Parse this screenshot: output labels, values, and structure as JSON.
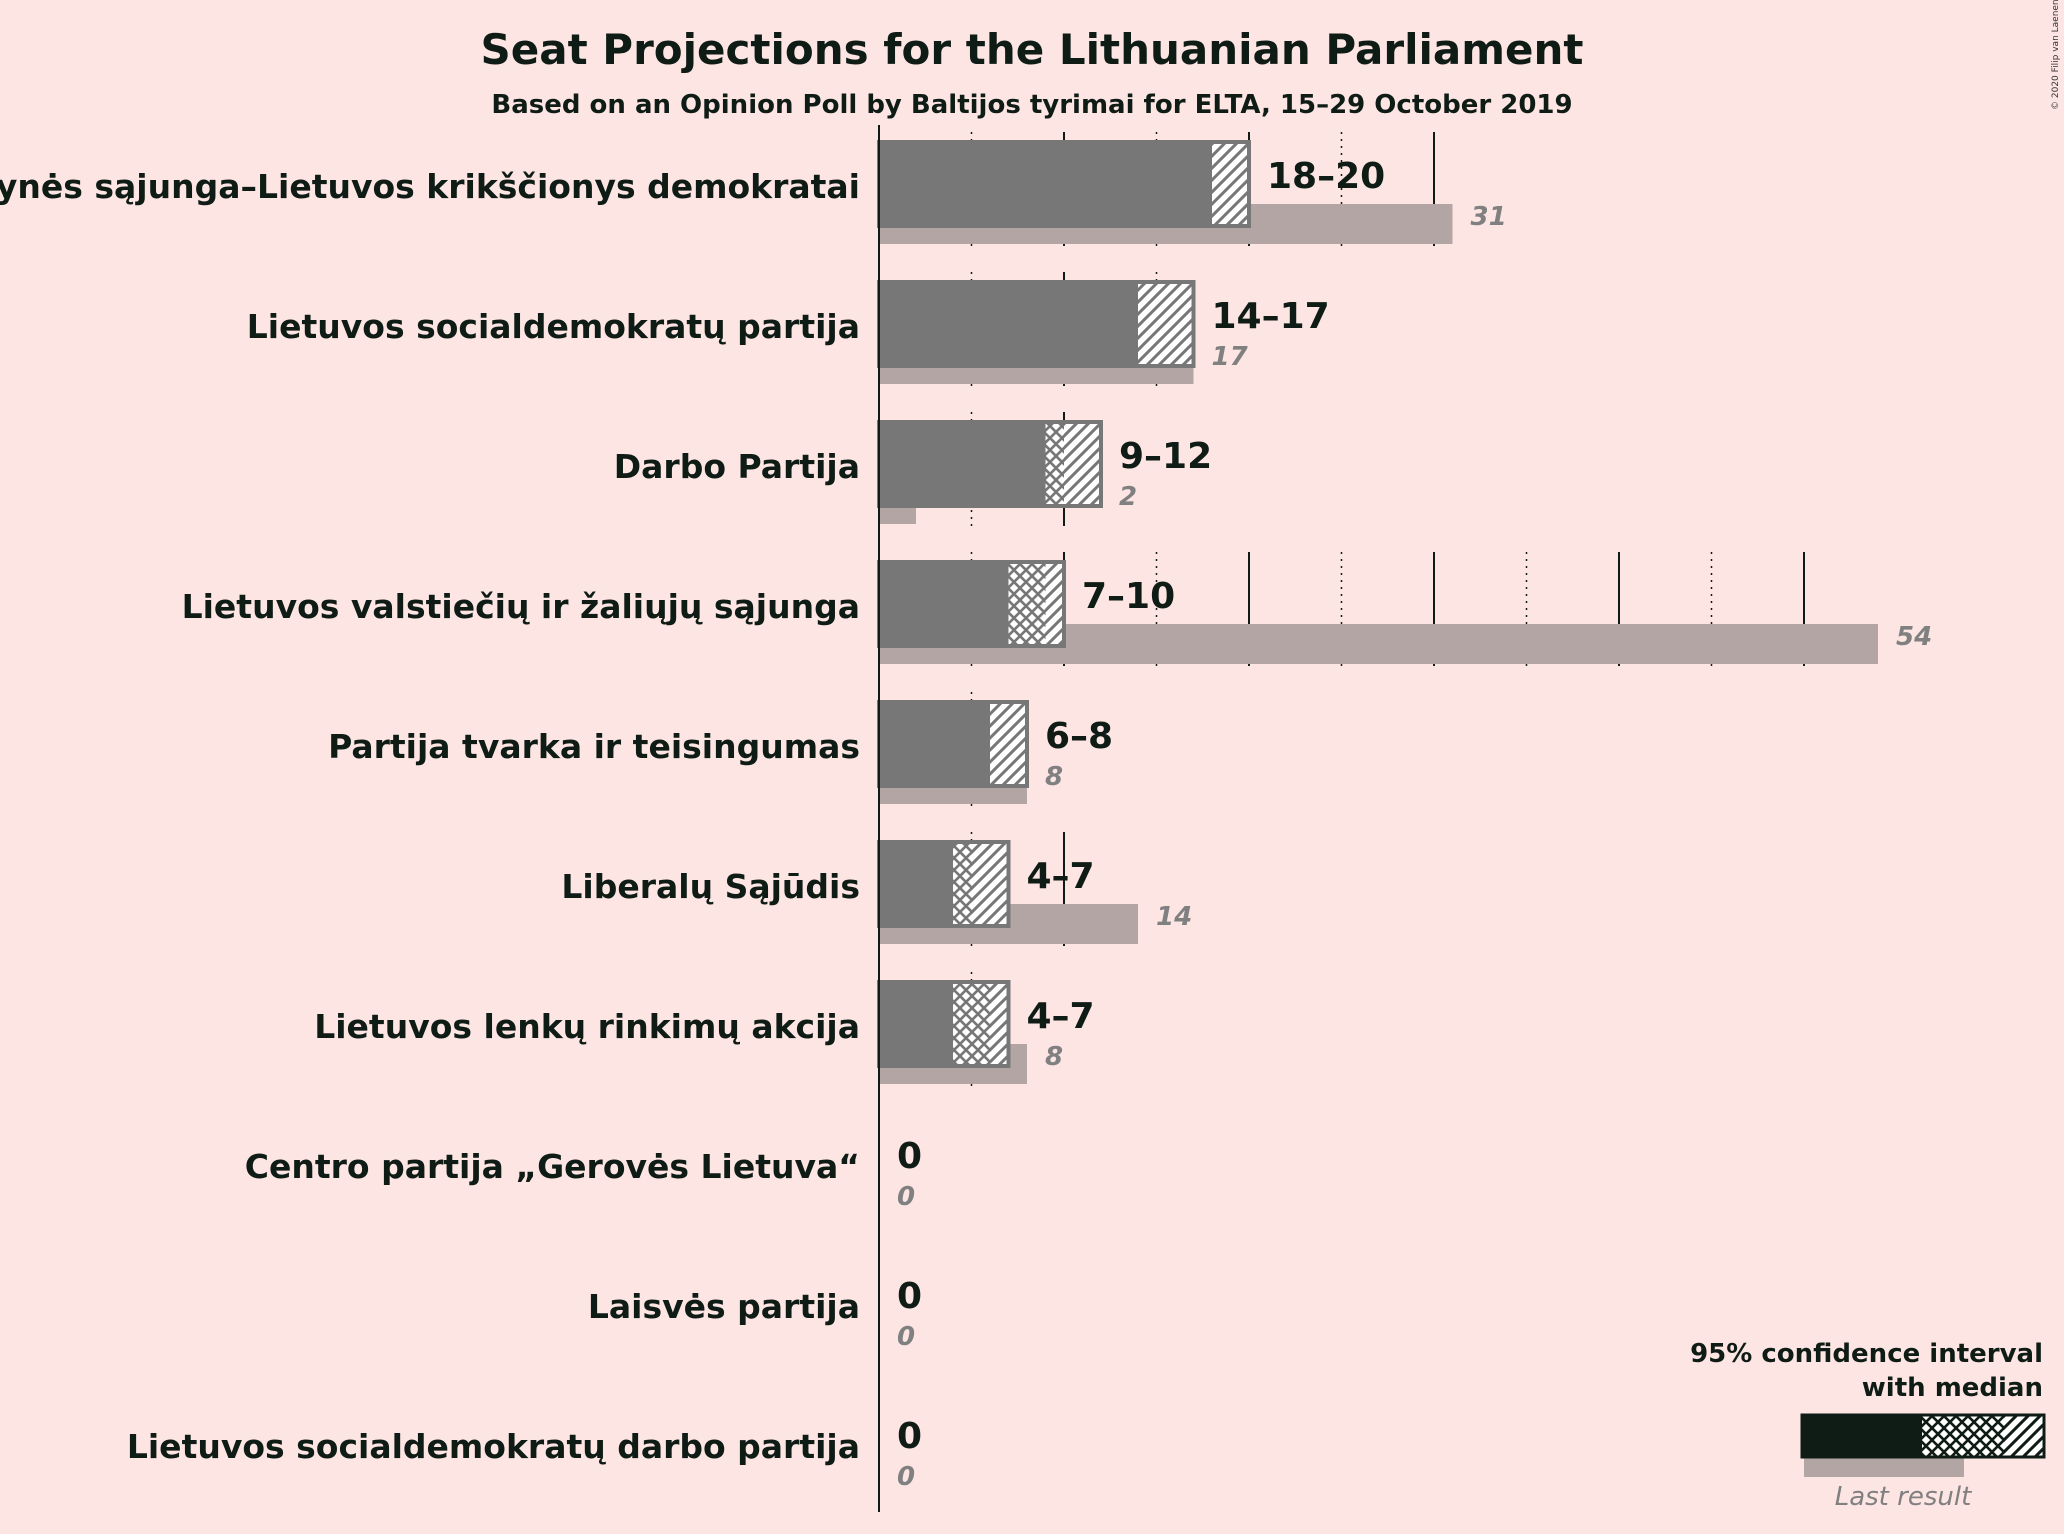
{
  "copyright": "© 2020 Filip van Laenen",
  "legend": {
    "ci_line1": "95% confidence interval",
    "ci_line2": "with median",
    "last_result": "Last result"
  },
  "colors": {
    "bar": "#777777",
    "last_result": "#b3a5a4",
    "background": "#fde5e4",
    "text": "#0f1c16",
    "legend_bar": "#0f1c16"
  },
  "chart_data": {
    "type": "bar",
    "orientation": "horizontal",
    "title": "Seat Projections for the Lithuanian Parliament",
    "subtitle": "Based on an Opinion Poll by Baltijos tyrimai for ELTA, 15–29 October 2019",
    "xlim": [
      0,
      56
    ],
    "grid_major_every": 10,
    "grid_minor_every": 5,
    "legend_position": "bottom-right",
    "categories": [
      "Tėvynės sąjunga–Lietuvos krikščionys demokratai",
      "Lietuvos socialdemokratų partija",
      "Darbo Partija",
      "Lietuvos valstiečių ir žaliųjų sąjunga",
      "Partija tvarka ir teisingumas",
      "Liberalų Sąjūdis",
      "Lietuvos lenkų rinkimų akcija",
      "Centro partija „Gerovės Lietuva“",
      "Laisvės partija",
      "Lietuvos socialdemokratų darbo partija"
    ],
    "series": [
      {
        "name": "95% confidence interval",
        "low": [
          18,
          14,
          9,
          7,
          6,
          4,
          4,
          0,
          0,
          0
        ],
        "high": [
          20,
          17,
          12,
          10,
          8,
          7,
          7,
          0,
          0,
          0
        ],
        "median": [
          18,
          14,
          10,
          9,
          6,
          5,
          6,
          0,
          0,
          0
        ],
        "labels": [
          "18–20",
          "14–17",
          "9–12",
          "7–10",
          "6–8",
          "4–7",
          "4–7",
          "0",
          "0",
          "0"
        ]
      },
      {
        "name": "Last result",
        "values": [
          31,
          17,
          2,
          54,
          8,
          14,
          8,
          0,
          0,
          0
        ],
        "labels": [
          "31",
          "17",
          "2",
          "54",
          "8",
          "14",
          "8",
          "0",
          "0",
          "0"
        ]
      }
    ]
  }
}
